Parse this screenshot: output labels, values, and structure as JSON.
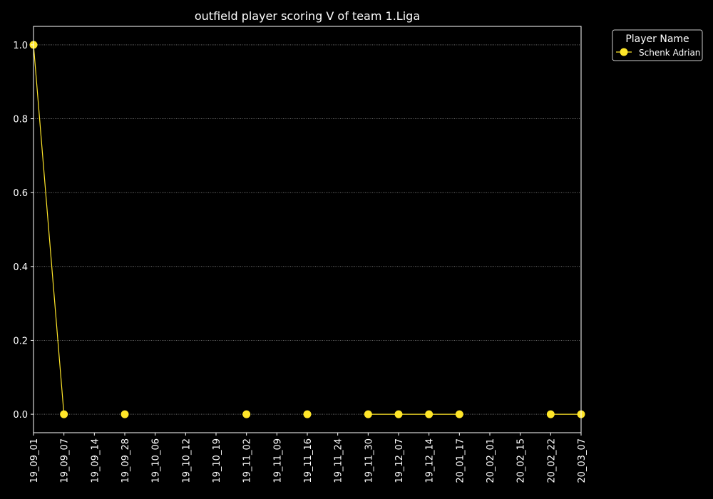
{
  "chart_data": {
    "type": "line",
    "title": "outfield player scoring V of team 1.Liga",
    "xlabel": "",
    "ylabel": "",
    "x_ticks": [
      "19_09_01",
      "19_09_07",
      "19_09_14",
      "19_09_28",
      "19_10_06",
      "19_10_12",
      "19_10_19",
      "19_11_02",
      "19_11_09",
      "19_11_16",
      "19_11_24",
      "19_11_30",
      "19_12_07",
      "19_12_14",
      "20_01_17",
      "20_02_01",
      "20_02_15",
      "20_02_22",
      "20_03_07"
    ],
    "y_ticks": [
      "0.0",
      "0.2",
      "0.4",
      "0.6",
      "0.8",
      "1.0"
    ],
    "ylim": [
      -0.05,
      1.05
    ],
    "grid": "horizontal dotted",
    "legend": {
      "title": "Player Name",
      "position": "outside top-right"
    },
    "series": [
      {
        "name": "Schenk Adrian",
        "color": "#ffe629",
        "points": [
          {
            "x": "19_09_01",
            "y": 1.0
          },
          {
            "x": "19_09_07",
            "y": 0.0
          },
          {
            "x": "19_09_28",
            "y": 0.0
          },
          {
            "x": "19_11_02",
            "y": 0.0
          },
          {
            "x": "19_11_16",
            "y": 0.0
          },
          {
            "x": "19_11_30",
            "y": 0.0
          },
          {
            "x": "19_12_07",
            "y": 0.0
          },
          {
            "x": "19_12_14",
            "y": 0.0
          },
          {
            "x": "20_01_17",
            "y": 0.0
          },
          {
            "x": "20_02_22",
            "y": 0.0
          },
          {
            "x": "20_03_07",
            "y": 0.0
          }
        ],
        "segments": [
          [
            "19_09_01",
            "19_09_07"
          ],
          [
            "19_11_30",
            "19_12_07"
          ],
          [
            "19_12_07",
            "19_12_14"
          ],
          [
            "19_12_14",
            "20_01_17"
          ],
          [
            "20_02_22",
            "20_03_07"
          ]
        ]
      }
    ]
  }
}
